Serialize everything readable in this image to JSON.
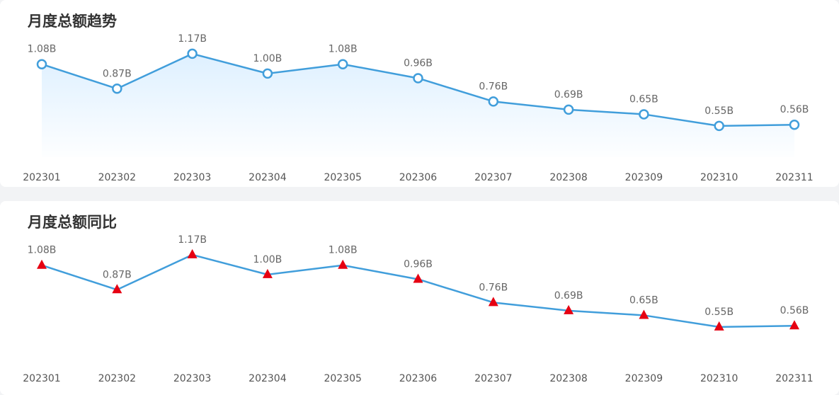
{
  "colors": {
    "line": "#419edb",
    "marker_fill": "#ffffff",
    "triangle": "#e60012",
    "label": "#666666",
    "area_top": "#dcefff"
  },
  "chart_data": [
    {
      "type": "area",
      "title": "月度总额趋势",
      "marker": "circle",
      "categories": [
        "202301",
        "202302",
        "202303",
        "202304",
        "202305",
        "202306",
        "202307",
        "202308",
        "202309",
        "202310",
        "202311"
      ],
      "values": [
        1.08,
        0.87,
        1.17,
        1.0,
        1.08,
        0.96,
        0.76,
        0.69,
        0.65,
        0.55,
        0.56
      ],
      "labels": [
        "1.08B",
        "0.87B",
        "1.17B",
        "1.00B",
        "1.08B",
        "0.96B",
        "0.76B",
        "0.69B",
        "0.65B",
        "0.55B",
        "0.56B"
      ],
      "ylim": [
        0.3,
        1.2
      ],
      "grid": false
    },
    {
      "type": "line",
      "title": "月度总额同比",
      "marker": "triangle",
      "categories": [
        "202301",
        "202302",
        "202303",
        "202304",
        "202305",
        "202306",
        "202307",
        "202308",
        "202309",
        "202310",
        "202311"
      ],
      "values": [
        1.08,
        0.87,
        1.17,
        1.0,
        1.08,
        0.96,
        0.76,
        0.69,
        0.65,
        0.55,
        0.56
      ],
      "labels": [
        "1.08B",
        "0.87B",
        "1.17B",
        "1.00B",
        "1.08B",
        "0.96B",
        "0.76B",
        "0.69B",
        "0.65B",
        "0.55B",
        "0.56B"
      ],
      "ylim": [
        0.3,
        1.2
      ],
      "grid": false
    }
  ]
}
